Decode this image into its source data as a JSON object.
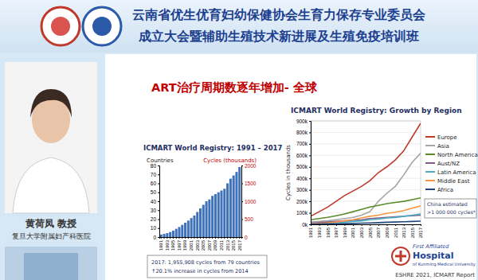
{
  "slide": {
    "header": [
      "云南省优生优育妇幼保健协会生育力保存专业委员会",
      "成立大会暨辅助生殖技术新进展及生殖免疫培训班"
    ],
    "speaker": {
      "name": "黄荷凤 教授",
      "affiliation": "复旦大学附属妇产科医院"
    },
    "slide_title": "ART治疗周期数逐年增加- 全球",
    "logo_text": [
      "First Affiliated",
      "Hospital",
      "of Kunming Medical University"
    ],
    "source": "ESHRE 2021, ICMART Report"
  },
  "chart_data": [
    {
      "type": "bar",
      "title": "ICMART World Registry: 1991 – 2017",
      "y_label": "Countries",
      "categories": [
        "1991",
        null,
        "1993",
        null,
        "1995",
        null,
        "1997",
        null,
        "1999",
        null,
        "2001",
        null,
        "2003",
        null,
        "2005",
        null,
        "2007",
        null,
        "2009",
        null,
        "2011",
        null,
        "2013",
        null,
        "2015",
        null,
        "2017"
      ],
      "series": [
        {
          "name": "Cycles (thousands)",
          "color": "#3f72b8",
          "axis": "y2",
          "values": [
            70,
            90,
            110,
            140,
            180,
            230,
            280,
            340,
            400,
            460,
            530,
            600,
            700,
            800,
            900,
            1000,
            1050,
            1150,
            1200,
            1250,
            1300,
            1350,
            1500,
            1630,
            1720,
            1820,
            1956
          ]
        }
      ],
      "ylim": [
        0,
        80
      ],
      "yticks": [
        0,
        10,
        20,
        30,
        40,
        50,
        60,
        70,
        80
      ],
      "y2lim": [
        0,
        2000
      ],
      "y2ticks": [
        0,
        500,
        1000,
        1500,
        2000
      ],
      "annotations": [
        "2017: 1,955,908 cycles from 79 countries",
        "↑20.1% increase in cycles from 2014"
      ]
    },
    {
      "type": "line",
      "title": "ICMART World Registry: Growth by Region",
      "y_label": "Cycles in thousands",
      "x": [
        1991,
        1993,
        1995,
        1997,
        1999,
        2001,
        2003,
        2005,
        2007,
        2009,
        2011,
        2013,
        2015,
        2017
      ],
      "xlim": [
        1991,
        2017
      ],
      "xticks": [
        1991,
        1993,
        1995,
        1997,
        1999,
        2001,
        2003,
        2005,
        2007,
        2009,
        2011,
        2013,
        2015,
        2017
      ],
      "ylim": [
        0,
        900
      ],
      "yticks": [
        {
          "value": 0,
          "label": "0k"
        },
        {
          "value": 100,
          "label": "100k"
        },
        {
          "value": 200,
          "label": "200k"
        },
        {
          "value": 300,
          "label": "300k"
        },
        {
          "value": 400,
          "label": "400k"
        },
        {
          "value": 500,
          "label": "500k"
        },
        {
          "value": 600,
          "label": "600k"
        },
        {
          "value": 700,
          "label": "700k"
        },
        {
          "value": 800,
          "label": "800k"
        },
        {
          "value": 900,
          "label": "900k"
        }
      ],
      "grid": true,
      "legend": "right",
      "series": [
        {
          "name": "Europe",
          "color": "#c0392b",
          "values": [
            70,
            110,
            150,
            200,
            250,
            290,
            330,
            380,
            450,
            500,
            560,
            640,
            760,
            880
          ]
        },
        {
          "name": "Asia",
          "color": "#a6a6a6",
          "values": [
            20,
            25,
            30,
            40,
            50,
            60,
            80,
            110,
            200,
            270,
            330,
            430,
            540,
            620
          ]
        },
        {
          "name": "North America",
          "color": "#5a8a2a",
          "values": [
            40,
            50,
            60,
            75,
            90,
            110,
            130,
            150,
            165,
            180,
            190,
            200,
            215,
            230
          ]
        },
        {
          "name": "Aust/NZ",
          "color": "#7f6084",
          "values": [
            10,
            15,
            20,
            25,
            30,
            35,
            40,
            50,
            55,
            60,
            65,
            70,
            75,
            80
          ]
        },
        {
          "name": "Latin America",
          "color": "#4bacc6",
          "values": [
            5,
            8,
            10,
            15,
            20,
            25,
            30,
            40,
            45,
            55,
            60,
            70,
            80,
            90
          ]
        },
        {
          "name": "Middle East",
          "color": "#f79646",
          "values": [
            5,
            8,
            12,
            20,
            30,
            40,
            55,
            70,
            80,
            95,
            105,
            120,
            140,
            160
          ]
        },
        {
          "name": "Africa",
          "color": "#1f497d",
          "values": [
            2,
            3,
            4,
            5,
            6,
            8,
            10,
            12,
            15,
            18,
            20,
            22,
            25,
            28
          ]
        }
      ],
      "annotations": [
        "China estimated",
        ">1 000 000 cycles*"
      ]
    }
  ]
}
